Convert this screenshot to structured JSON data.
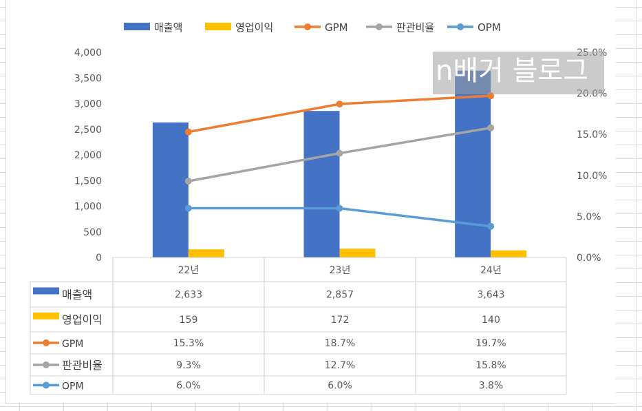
{
  "chart_data": {
    "type": "bar",
    "categories": [
      "22년",
      "23년",
      "24년"
    ],
    "series": [
      {
        "name": "매출액",
        "kind": "bar",
        "axis": "left",
        "color": "#4472c4",
        "values": [
          2633,
          2857,
          3643
        ],
        "labels": [
          "2,633",
          "2,857",
          "3,643"
        ]
      },
      {
        "name": "영업이익",
        "kind": "bar",
        "axis": "left",
        "color": "#ffc000",
        "values": [
          159,
          172,
          140
        ],
        "labels": [
          "159",
          "172",
          "140"
        ]
      },
      {
        "name": "GPM",
        "kind": "line",
        "axis": "right",
        "color": "#ed7d31",
        "values": [
          15.3,
          18.7,
          19.7
        ],
        "labels": [
          "15.3%",
          "18.7%",
          "19.7%"
        ]
      },
      {
        "name": "판관비율",
        "kind": "line",
        "axis": "right",
        "color": "#a5a5a5",
        "values": [
          9.3,
          12.7,
          15.8
        ],
        "labels": [
          "9.3%",
          "12.7%",
          "15.8%"
        ]
      },
      {
        "name": "OPM",
        "kind": "line",
        "axis": "right",
        "color": "#5b9bd5",
        "values": [
          6.0,
          6.0,
          3.8
        ],
        "labels": [
          "6.0%",
          "6.0%",
          "3.8%"
        ]
      }
    ],
    "y_left": {
      "min": 0,
      "max": 4000,
      "ticks": [
        "0",
        "500",
        "1,000",
        "1,500",
        "2,000",
        "2,500",
        "3,000",
        "3,500",
        "4,000"
      ]
    },
    "y_right": {
      "min": 0,
      "max": 25,
      "ticks": [
        "0.0%",
        "5.0%",
        "10.0%",
        "15.0%",
        "20.0%",
        "25.0%"
      ]
    },
    "legend_position": "top",
    "data_table": true
  },
  "watermark": "n배거 블로그"
}
